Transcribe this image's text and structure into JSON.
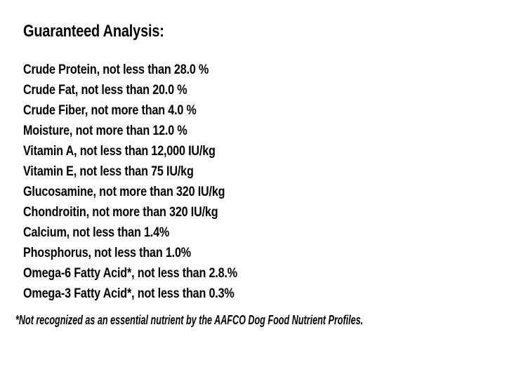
{
  "page": {
    "background_color": "#ffffff",
    "text_color": "#000000"
  },
  "header": {
    "title": "Guaranteed Analysis:"
  },
  "analysis": {
    "items": [
      {
        "nutrient": "Crude Protein",
        "qualifier": "not less than",
        "amount": "28.0 %",
        "text": "Crude Protein, not less than 28.0 %"
      },
      {
        "nutrient": "Crude Fat",
        "qualifier": "not less than",
        "amount": "20.0 %",
        "text": "Crude Fat, not less than 20.0 %"
      },
      {
        "nutrient": "Crude Fiber",
        "qualifier": "not more than",
        "amount": "4.0 %",
        "text": "Crude Fiber, not more than 4.0 %"
      },
      {
        "nutrient": "Moisture",
        "qualifier": "not more than",
        "amount": "12.0 %",
        "text": "Moisture, not more than 12.0 %"
      },
      {
        "nutrient": "Vitamin A",
        "qualifier": "not less than",
        "amount": "12,000 IU/kg",
        "text": "Vitamin A, not less than 12,000 IU/kg"
      },
      {
        "nutrient": "Vitamin E",
        "qualifier": "not less than",
        "amount": "75 IU/kg",
        "text": "Vitamin E, not less than 75 IU/kg"
      },
      {
        "nutrient": "Glucosamine",
        "qualifier": "not more than",
        "amount": "320 IU/kg",
        "text": "Glucosamine, not more than 320 IU/kg"
      },
      {
        "nutrient": "Chondroitin",
        "qualifier": "not more than",
        "amount": "320 IU/kg",
        "text": "Chondroitin, not more than 320 IU/kg"
      },
      {
        "nutrient": "Calcium",
        "qualifier": "not less than",
        "amount": "1.4%",
        "text": "Calcium, not less than 1.4%"
      },
      {
        "nutrient": "Phosphorus",
        "qualifier": "not less than",
        "amount": "1.0%",
        "text": "Phosphorus, not less than 1.0%"
      },
      {
        "nutrient": "Omega-6 Fatty Acid*",
        "qualifier": "not less than",
        "amount": "2.8.%",
        "text": "Omega-6 Fatty Acid*, not less than 2.8.%"
      },
      {
        "nutrient": "Omega-3 Fatty Acid*",
        "qualifier": "not less than",
        "amount": "0.3%",
        "text": "Omega-3 Fatty Acid*, not less than 0.3%"
      }
    ]
  },
  "footnote": {
    "text": "*Not recognized as an essential nutrient by the AAFCO Dog Food Nutrient Profiles."
  }
}
